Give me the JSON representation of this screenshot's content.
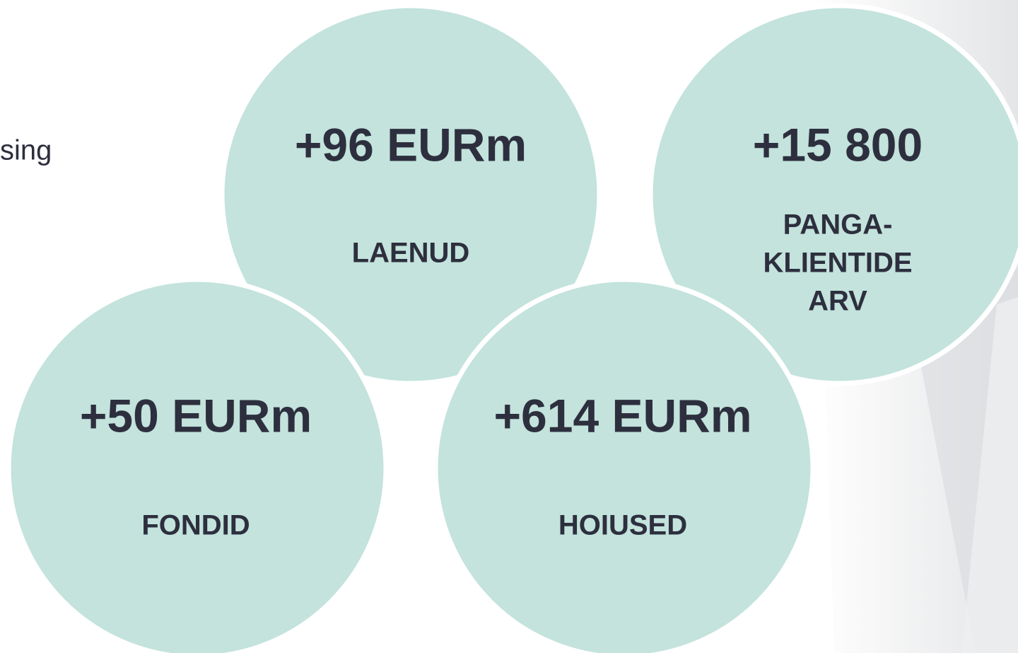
{
  "fragment_text": "sing",
  "circles": [
    {
      "value": "+96 EURm",
      "label_lines": [
        "LAENUD"
      ]
    },
    {
      "value": "+15 800",
      "label_lines": [
        "PANGA-",
        "KLIENTIDE",
        "ARV"
      ]
    },
    {
      "value": "+50 EURm",
      "label_lines": [
        "FONDID"
      ]
    },
    {
      "value": "+614 EURm",
      "label_lines": [
        "HOIUSED"
      ]
    }
  ]
}
